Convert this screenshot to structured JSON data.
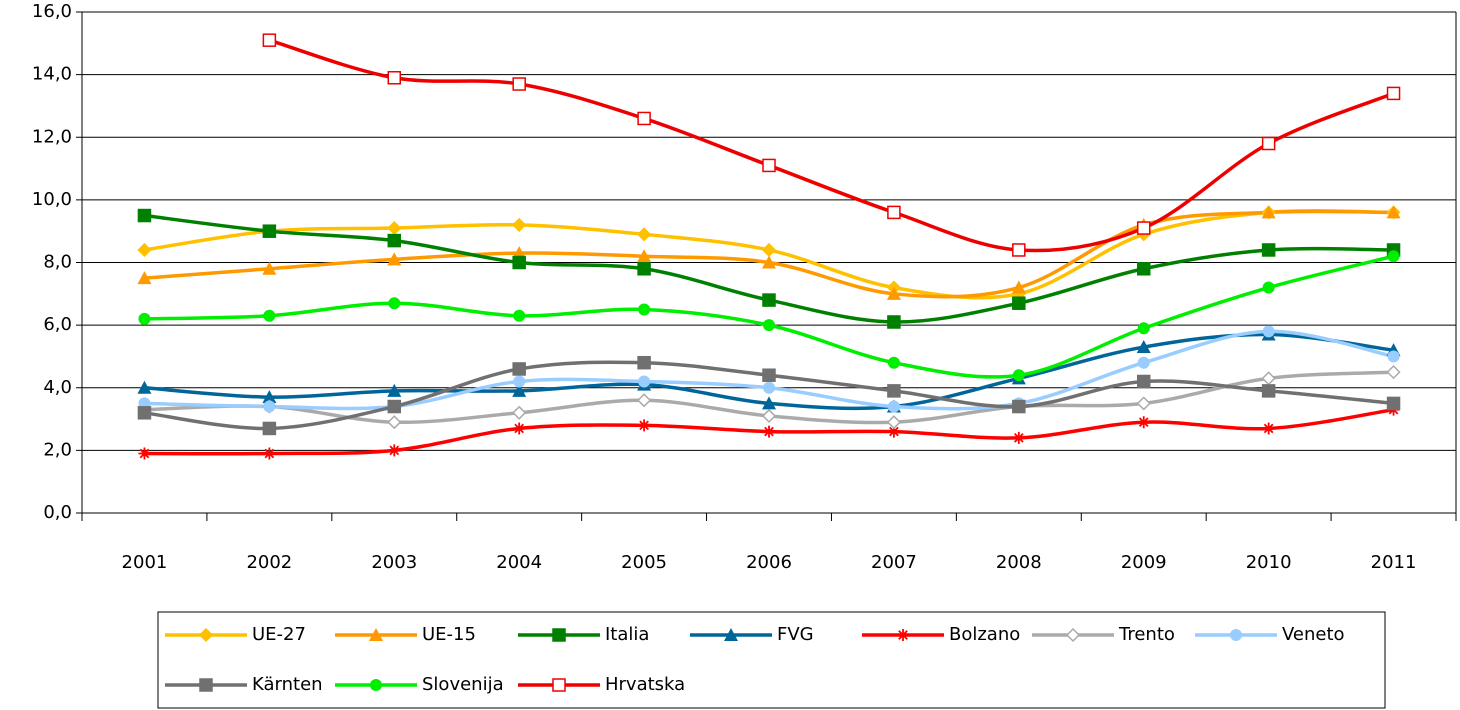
{
  "chart_data": {
    "type": "line",
    "categories": [
      "2001",
      "2002",
      "2003",
      "2004",
      "2005",
      "2006",
      "2007",
      "2008",
      "2009",
      "2010",
      "2011"
    ],
    "ylim": [
      0,
      16
    ],
    "yticks": [
      {
        "value": 0,
        "label": "0,0"
      },
      {
        "value": 2,
        "label": "2,0"
      },
      {
        "value": 4,
        "label": "4,0"
      },
      {
        "value": 6,
        "label": "6,0"
      },
      {
        "value": 8,
        "label": "8,0"
      },
      {
        "value": 10,
        "label": "10,0"
      },
      {
        "value": 12,
        "label": "12,0"
      },
      {
        "value": 14,
        "label": "14,0"
      },
      {
        "value": 16,
        "label": "16,0"
      }
    ],
    "grid": true,
    "legend": "bottom",
    "series": [
      {
        "name": "UE-27",
        "color": "#ffc000",
        "marker": "diamond",
        "values": [
          8.4,
          9.0,
          9.1,
          9.2,
          8.9,
          8.4,
          7.2,
          7.0,
          8.9,
          9.6,
          9.6
        ]
      },
      {
        "name": "UE-15",
        "color": "#ff9900",
        "marker": "triangle",
        "values": [
          7.5,
          7.8,
          8.1,
          8.3,
          8.2,
          8.0,
          7.0,
          7.2,
          9.2,
          9.6,
          9.6
        ]
      },
      {
        "name": "Italia",
        "color": "#008000",
        "marker": "square",
        "values": [
          9.5,
          9.0,
          8.7,
          8.0,
          7.8,
          6.8,
          6.1,
          6.7,
          7.8,
          8.4,
          8.4
        ]
      },
      {
        "name": "FVG",
        "color": "#006699",
        "marker": "triangle",
        "values": [
          4.0,
          3.7,
          3.9,
          3.9,
          4.1,
          3.5,
          3.4,
          4.3,
          5.3,
          5.7,
          5.2
        ]
      },
      {
        "name": "Bolzano",
        "color": "#ff0000",
        "marker": "star",
        "values": [
          1.9,
          1.9,
          2.0,
          2.7,
          2.8,
          2.6,
          2.6,
          2.4,
          2.9,
          2.7,
          3.3
        ]
      },
      {
        "name": "Trento",
        "color": "#aaaaaa",
        "marker": "open-diamond",
        "values": [
          3.3,
          3.4,
          2.9,
          3.2,
          3.6,
          3.1,
          2.9,
          3.4,
          3.5,
          4.3,
          4.5
        ]
      },
      {
        "name": "Veneto",
        "color": "#99ccff",
        "marker": "circle",
        "values": [
          3.5,
          3.4,
          3.4,
          4.2,
          4.2,
          4.0,
          3.4,
          3.5,
          4.8,
          5.8,
          5.0
        ]
      },
      {
        "name": "Kärnten",
        "color": "#707070",
        "marker": "square",
        "values": [
          3.2,
          2.7,
          3.4,
          4.6,
          4.8,
          4.4,
          3.9,
          3.4,
          4.2,
          3.9,
          3.5
        ]
      },
      {
        "name": "Slovenija",
        "color": "#00ee00",
        "marker": "circle",
        "values": [
          6.2,
          6.3,
          6.7,
          6.3,
          6.5,
          6.0,
          4.8,
          4.4,
          5.9,
          7.2,
          8.2
        ]
      },
      {
        "name": "Hrvatska",
        "color": "#ee0000",
        "marker": "open-square",
        "values": [
          null,
          15.1,
          13.9,
          13.7,
          12.6,
          11.1,
          9.6,
          8.4,
          9.1,
          11.8,
          13.4
        ]
      }
    ]
  }
}
